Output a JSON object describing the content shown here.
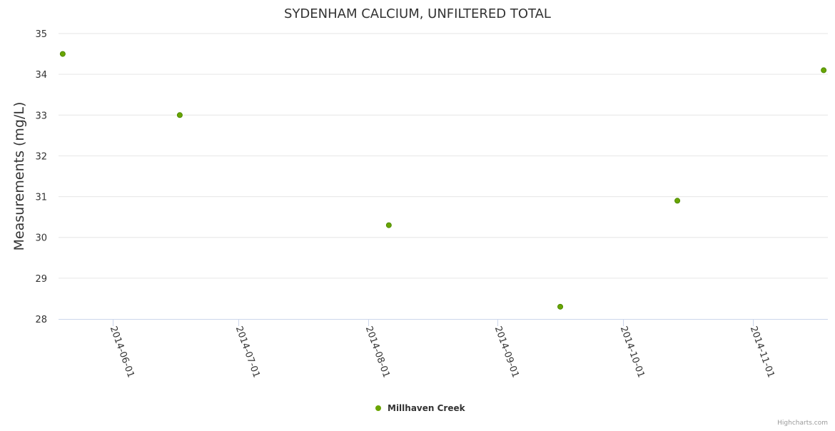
{
  "chart_data": {
    "type": "scatter",
    "title": "SYDENHAM CALCIUM, UNFILTERED TOTAL",
    "xlabel": "",
    "ylabel": "Measurements (mg/L)",
    "ylim": [
      28,
      35
    ],
    "yticks": [
      28,
      29,
      30,
      31,
      32,
      33,
      34,
      35
    ],
    "xlim": [
      "2014-05-19",
      "2014-11-19"
    ],
    "xticks": [
      "2014-06-01",
      "2014-07-01",
      "2014-08-01",
      "2014-09-01",
      "2014-10-01",
      "2014-11-01"
    ],
    "grid": true,
    "legend_position": "bottom-center",
    "series": [
      {
        "name": "Millhaven Creek",
        "color": "#6aa500",
        "points": [
          {
            "x": "2014-05-20",
            "y": 34.5
          },
          {
            "x": "2014-06-17",
            "y": 33.0
          },
          {
            "x": "2014-08-06",
            "y": 30.3
          },
          {
            "x": "2014-09-16",
            "y": 28.3
          },
          {
            "x": "2014-10-14",
            "y": 30.9
          },
          {
            "x": "2014-11-18",
            "y": 34.1
          }
        ]
      }
    ]
  },
  "credits": "Highcharts.com"
}
